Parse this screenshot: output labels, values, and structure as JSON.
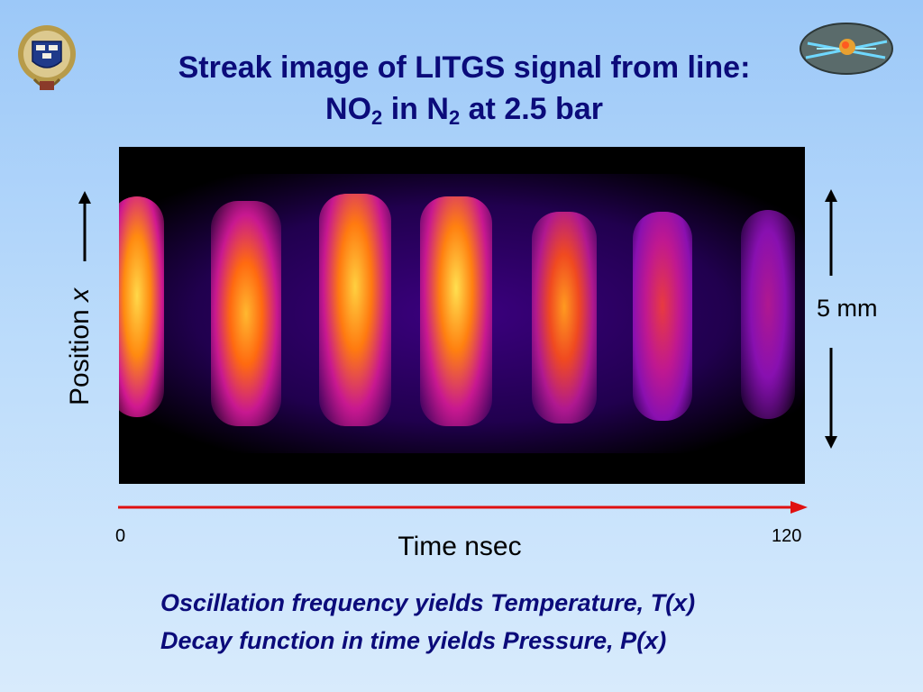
{
  "title": {
    "line1": "Streak image of LITGS signal from line:",
    "line2_no": "NO",
    "line2_no_sub": "2",
    "line2_mid": " in N",
    "line2_n_sub": "2",
    "line2_end": " at 2.5 bar"
  },
  "y_axis": {
    "label": "Position ",
    "variable": "x"
  },
  "x_axis": {
    "label": "Time nsec",
    "tick_start": "0",
    "tick_end": "120"
  },
  "scale": {
    "label": "5 mm"
  },
  "caption": {
    "line1": "Oscillation frequency yields Temperature, T(x)",
    "line2": "Decay function in time yields Pressure, P(x)"
  },
  "colors": {
    "title": "#0b0b7a",
    "time_arrow": "#e01010",
    "caption": "#0b0b7a"
  },
  "icons": [
    "university-crest-icon",
    "gas-flow-logo-icon"
  ]
}
